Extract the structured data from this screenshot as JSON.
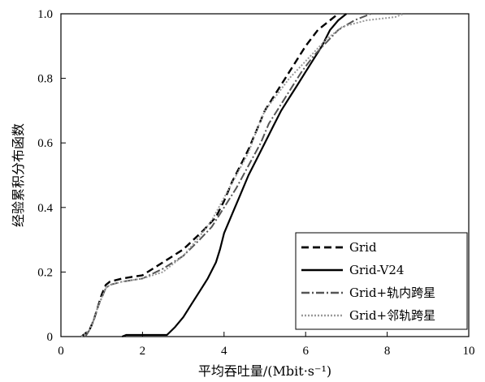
{
  "chart_data": {
    "type": "line",
    "title": "",
    "xlabel": "平均吞吐量/(Mbit·s⁻¹)",
    "ylabel": "经验累积分布函数",
    "xlim": [
      0,
      10
    ],
    "ylim": [
      0,
      1.0
    ],
    "x_ticks": [
      "0",
      "2",
      "4",
      "6",
      "8",
      "10"
    ],
    "y_ticks": [
      "0",
      "0.2",
      "0.4",
      "0.6",
      "0.8",
      "1.0"
    ],
    "grid": false,
    "legend_position": "bottom-right",
    "series": [
      {
        "name": "Grid",
        "style": "dashed",
        "color": "#000000",
        "points": [
          [
            0.5,
            0.0
          ],
          [
            0.7,
            0.02
          ],
          [
            0.8,
            0.05
          ],
          [
            0.9,
            0.09
          ],
          [
            1.0,
            0.13
          ],
          [
            1.1,
            0.16
          ],
          [
            1.2,
            0.17
          ],
          [
            1.5,
            0.18
          ],
          [
            2.0,
            0.19
          ],
          [
            2.5,
            0.23
          ],
          [
            3.0,
            0.27
          ],
          [
            3.5,
            0.33
          ],
          [
            3.8,
            0.37
          ],
          [
            4.0,
            0.42
          ],
          [
            4.2,
            0.48
          ],
          [
            4.4,
            0.53
          ],
          [
            4.6,
            0.58
          ],
          [
            4.8,
            0.64
          ],
          [
            5.0,
            0.7
          ],
          [
            5.2,
            0.74
          ],
          [
            5.5,
            0.8
          ],
          [
            5.8,
            0.86
          ],
          [
            6.0,
            0.9
          ],
          [
            6.3,
            0.95
          ],
          [
            6.6,
            0.98
          ],
          [
            6.8,
            1.0
          ]
        ]
      },
      {
        "name": "Grid-V24",
        "style": "solid",
        "color": "#000000",
        "points": [
          [
            1.5,
            0.0
          ],
          [
            1.6,
            0.005
          ],
          [
            2.6,
            0.005
          ],
          [
            2.8,
            0.03
          ],
          [
            3.0,
            0.06
          ],
          [
            3.2,
            0.1
          ],
          [
            3.4,
            0.14
          ],
          [
            3.6,
            0.18
          ],
          [
            3.8,
            0.23
          ],
          [
            3.9,
            0.27
          ],
          [
            4.0,
            0.32
          ],
          [
            4.2,
            0.38
          ],
          [
            4.4,
            0.44
          ],
          [
            4.6,
            0.5
          ],
          [
            4.8,
            0.55
          ],
          [
            5.0,
            0.6
          ],
          [
            5.2,
            0.65
          ],
          [
            5.4,
            0.7
          ],
          [
            5.6,
            0.74
          ],
          [
            5.8,
            0.78
          ],
          [
            6.0,
            0.82
          ],
          [
            6.2,
            0.86
          ],
          [
            6.4,
            0.9
          ],
          [
            6.6,
            0.95
          ],
          [
            6.8,
            0.98
          ],
          [
            7.0,
            1.0
          ]
        ]
      },
      {
        "name": "Grid+轨内跨星",
        "style": "dashdot",
        "color": "#555555",
        "points": [
          [
            0.6,
            0.0
          ],
          [
            0.7,
            0.02
          ],
          [
            0.8,
            0.05
          ],
          [
            0.9,
            0.09
          ],
          [
            1.0,
            0.12
          ],
          [
            1.1,
            0.15
          ],
          [
            1.2,
            0.16
          ],
          [
            1.5,
            0.17
          ],
          [
            2.0,
            0.18
          ],
          [
            2.5,
            0.21
          ],
          [
            3.0,
            0.25
          ],
          [
            3.4,
            0.3
          ],
          [
            3.7,
            0.34
          ],
          [
            4.0,
            0.4
          ],
          [
            4.3,
            0.46
          ],
          [
            4.6,
            0.53
          ],
          [
            4.9,
            0.6
          ],
          [
            5.1,
            0.66
          ],
          [
            5.3,
            0.7
          ],
          [
            5.6,
            0.76
          ],
          [
            5.9,
            0.82
          ],
          [
            6.2,
            0.87
          ],
          [
            6.5,
            0.91
          ],
          [
            6.8,
            0.95
          ],
          [
            7.2,
            0.98
          ],
          [
            7.6,
            1.0
          ]
        ]
      },
      {
        "name": "Grid+邻轨跨星",
        "style": "dotted",
        "color": "#999999",
        "points": [
          [
            0.5,
            0.0
          ],
          [
            0.7,
            0.02
          ],
          [
            0.8,
            0.05
          ],
          [
            0.9,
            0.09
          ],
          [
            1.0,
            0.12
          ],
          [
            1.1,
            0.15
          ],
          [
            1.2,
            0.16
          ],
          [
            1.5,
            0.17
          ],
          [
            2.0,
            0.18
          ],
          [
            2.5,
            0.2
          ],
          [
            3.0,
            0.25
          ],
          [
            3.4,
            0.31
          ],
          [
            3.7,
            0.36
          ],
          [
            4.0,
            0.43
          ],
          [
            4.3,
            0.5
          ],
          [
            4.6,
            0.57
          ],
          [
            4.8,
            0.64
          ],
          [
            5.0,
            0.7
          ],
          [
            5.3,
            0.75
          ],
          [
            5.6,
            0.8
          ],
          [
            5.9,
            0.84
          ],
          [
            6.2,
            0.88
          ],
          [
            6.5,
            0.92
          ],
          [
            6.9,
            0.96
          ],
          [
            7.5,
            0.98
          ],
          [
            8.2,
            0.99
          ],
          [
            8.4,
            1.0
          ]
        ]
      }
    ]
  }
}
